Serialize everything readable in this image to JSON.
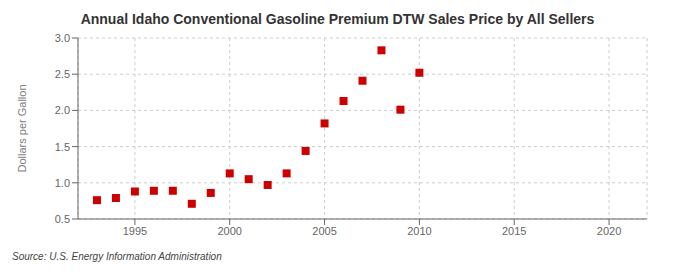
{
  "chart_data": {
    "type": "scatter",
    "title": "Annual Idaho Conventional Gasoline Premium DTW Sales Price by All Sellers",
    "ylabel": "Dollars per Gallon",
    "annotations": [
      "Source: U.S. Energy Information Administration"
    ],
    "x": [
      1993,
      1994,
      1995,
      1996,
      1997,
      1998,
      1999,
      2000,
      2001,
      2002,
      2003,
      2004,
      2005,
      2006,
      2007,
      2008,
      2009,
      2010
    ],
    "values": [
      0.76,
      0.79,
      0.88,
      0.89,
      0.89,
      0.71,
      0.86,
      1.13,
      1.05,
      0.97,
      1.13,
      1.44,
      1.82,
      2.13,
      2.41,
      2.83,
      2.01,
      2.52
    ],
    "color": "#cc0000",
    "marker": "square",
    "xlim": [
      1992,
      2022
    ],
    "xticks": [
      1995,
      2000,
      2005,
      2010,
      2015,
      2020
    ],
    "ylim": [
      0.5,
      3.0
    ],
    "yticks": [
      0.5,
      {
        "value": 1,
        "label": "1.0"
      },
      1.5,
      {
        "value": 2,
        "label": "2.0"
      },
      2.5,
      {
        "value": 3,
        "label": "3.0"
      }
    ],
    "grid": true
  }
}
